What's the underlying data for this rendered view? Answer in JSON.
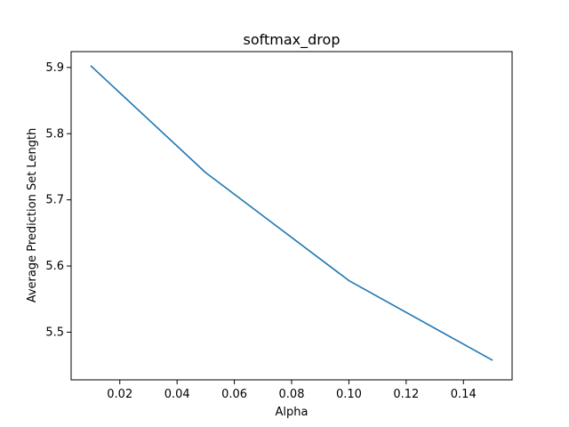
{
  "chart_data": {
    "type": "line",
    "title": "softmax_drop",
    "xlabel": "Alpha",
    "ylabel": "Average Prediction Set Length",
    "xlim": [
      0.003,
      0.157
    ],
    "ylim": [
      5.428,
      5.924
    ],
    "x_ticks": [
      0.02,
      0.04,
      0.06,
      0.08,
      0.1,
      0.12,
      0.14
    ],
    "x_tick_labels": [
      "0.02",
      "0.04",
      "0.06",
      "0.08",
      "0.10",
      "0.12",
      "0.14"
    ],
    "y_ticks": [
      5.5,
      5.6,
      5.7,
      5.8,
      5.9
    ],
    "y_tick_labels": [
      "5.5",
      "5.6",
      "5.7",
      "5.8",
      "5.9"
    ],
    "grid": false,
    "legend": "none",
    "series": [
      {
        "x": [
          0.01,
          0.05,
          0.1,
          0.15
        ],
        "y": [
          5.902,
          5.741,
          5.578,
          5.458
        ],
        "color": "#1f77b4"
      }
    ]
  }
}
